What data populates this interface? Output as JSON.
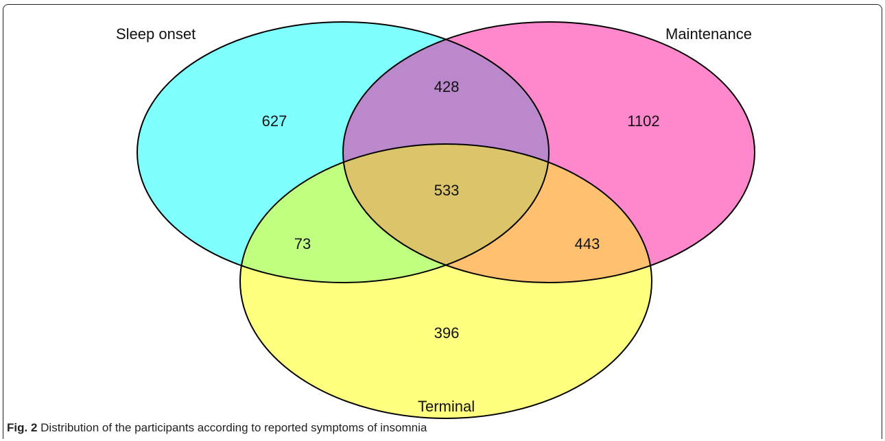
{
  "figure": {
    "caption_label": "Fig. 2",
    "caption_text": "Distribution of the participants according to reported symptoms of insomnia"
  },
  "venn": {
    "sets": [
      {
        "id": "sleep_onset",
        "label": "Sleep onset",
        "color": "#80ffff"
      },
      {
        "id": "maintenance",
        "label": "Maintenance",
        "color": "#ff88cc"
      },
      {
        "id": "terminal",
        "label": "Terminal",
        "color": "#ffff80"
      }
    ],
    "regions": {
      "sleep_onset_only": "627",
      "maintenance_only": "1102",
      "terminal_only": "396",
      "sleep_onset_maintenance": "428",
      "sleep_onset_terminal": "73",
      "maintenance_terminal": "443",
      "all_three": "533"
    },
    "region_colors": {
      "sleep_onset_maintenance": "#bb88cc",
      "sleep_onset_terminal": "#c0ff80",
      "maintenance_terminal": "#ffc070",
      "all_three": "#dcc46a"
    }
  }
}
